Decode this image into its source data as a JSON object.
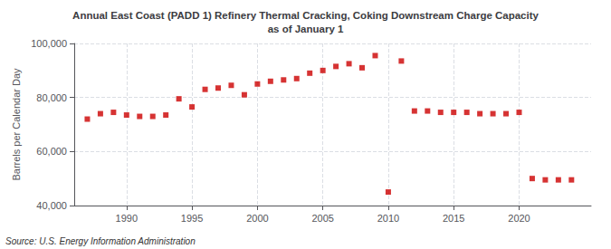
{
  "chart_data": {
    "type": "scatter",
    "title": "Annual East Coast (PADD 1) Refinery Thermal Cracking, Coking Downstream Charge Capacity\nas of January 1",
    "ylabel": "Barrels per Calendar Day",
    "annotation": "Source: U.S. Energy Information Administration",
    "x": [
      1987,
      1988,
      1989,
      1990,
      1991,
      1992,
      1993,
      1994,
      1995,
      1996,
      1997,
      1998,
      1999,
      2000,
      2001,
      2002,
      2003,
      2004,
      2005,
      2006,
      2007,
      2008,
      2009,
      2010,
      2011,
      2012,
      2013,
      2014,
      2015,
      2016,
      2017,
      2018,
      2019,
      2020,
      2021,
      2022,
      2023,
      2024
    ],
    "values": [
      72000,
      74000,
      74500,
      73500,
      73000,
      73000,
      73500,
      79500,
      76500,
      83000,
      83500,
      84500,
      81000,
      85000,
      86000,
      86500,
      87000,
      89000,
      90000,
      91500,
      92500,
      91000,
      95500,
      45000,
      93500,
      75000,
      75000,
      74500,
      74500,
      74500,
      74000,
      74000,
      74000,
      74500,
      50000,
      49500,
      49500,
      49500
    ],
    "color": "#cc0000",
    "marker": "square",
    "xlim": [
      1986,
      2025.5
    ],
    "xticks": [
      1990,
      1995,
      2000,
      2005,
      2010,
      2015,
      2020
    ],
    "ylim": [
      40000,
      100000
    ],
    "yticks": [
      {
        "value": 40000,
        "label": "40,000"
      },
      {
        "value": 60000,
        "label": "60,000"
      },
      {
        "value": 80000,
        "label": "80,000"
      },
      {
        "value": 100000,
        "label": "100,000"
      }
    ],
    "grid": true
  }
}
